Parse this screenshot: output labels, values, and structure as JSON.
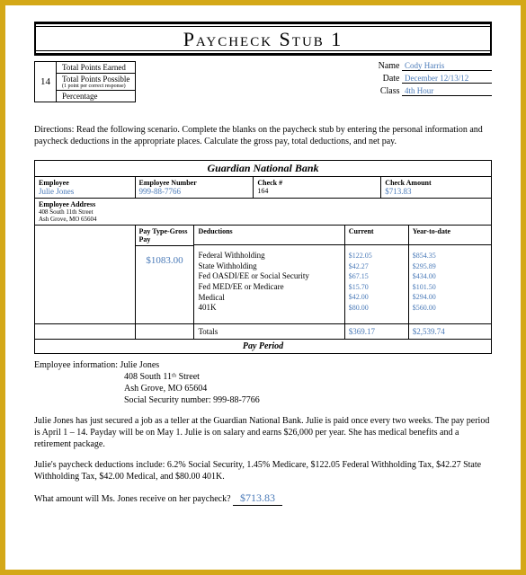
{
  "title": "Paycheck Stub 1",
  "points": {
    "number": "14",
    "earned_label": "Total Points Earned",
    "possible_label": "Total Points Possible",
    "possible_sub": "(1 point per correct response)",
    "percentage_label": "Percentage"
  },
  "meta": {
    "name_label": "Name",
    "name_value": "Cody Harris",
    "date_label": "Date",
    "date_value": "December 12/13/12",
    "class_label": "Class",
    "class_value": "4th Hour"
  },
  "directions": "Directions:  Read the following scenario. Complete the blanks on the paycheck stub by entering the personal information and paycheck deductions in the appropriate places. Calculate the gross pay, total deductions, and net pay.",
  "bank_name": "Guardian National Bank",
  "stub": {
    "employee_label": "Employee",
    "employee_value": "Julie Jones",
    "empnum_label": "Employee Number",
    "empnum_value": "999-88-7766",
    "check_label": "Check #",
    "check_value": "164",
    "amount_label": "Check Amount",
    "amount_value": "$713.83",
    "address_label": "Employee Address",
    "address_line1": "408 South 11th Street",
    "address_line2": "Ash Grove, MO 65604"
  },
  "pay": {
    "type_label": "Pay Type-Gross Pay",
    "ded_label": "Deductions",
    "cur_label": "Current",
    "ytd_label": "Year-to-date",
    "gross": "$1083.00",
    "deductions": [
      "Federal Withholding",
      "State Withholding",
      "Fed OASDI/EE or Social Security",
      "Fed MED/EE or Medicare",
      "Medical",
      "401K"
    ],
    "current": [
      "$122.05",
      "$42.27",
      "$67.15",
      "$15.70",
      "$42.00",
      "$80.00"
    ],
    "ytd": [
      "$854.35",
      "$295.89",
      "$434.00",
      "$101.50",
      "$294.00",
      "$560.00"
    ],
    "totals_label": "Totals",
    "totals_current": "$369.17",
    "totals_ytd": "$2,539.74",
    "pay_period_label": "Pay Period"
  },
  "emp_info": {
    "label": "Employee information:",
    "name": "Julie Jones",
    "addr1": "408 South 11ᵗʰ Street",
    "addr2": "Ash Grove, MO  65604",
    "ssn": "Social Security number: 999-88-7766"
  },
  "para1": "Julie Jones has just secured a job as a teller at the Guardian National Bank. Julie is paid once every two weeks. The pay period is April 1 – 14. Payday will be on May 1. Julie is on salary and earns $26,000 per year. She has medical benefits and a retirement package.",
  "para2": "Julie's paycheck deductions include:  6.2% Social Security, 1.45% Medicare, $122.05 Federal Withholding Tax, $42.27 State Withholding Tax, $42.00 Medical, and $80.00 401K.",
  "question": "What amount will Ms. Jones receive on her paycheck?",
  "answer": "$713.83",
  "colors": {
    "frame": "#d4a818",
    "page_bg": "#ffffff",
    "input_text": "#4a7ab8",
    "text": "#000000"
  }
}
